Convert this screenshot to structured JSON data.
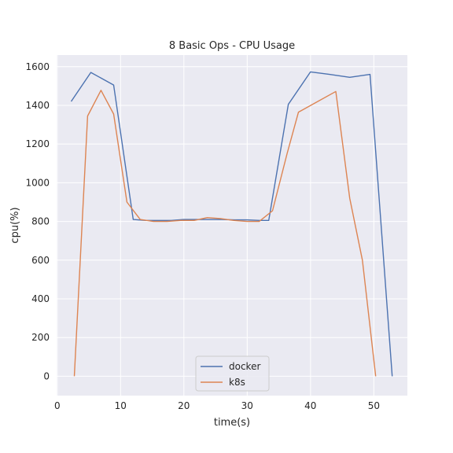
{
  "chart_data": {
    "type": "line",
    "title": "8 Basic Ops - CPU Usage",
    "xlabel": "time(s)",
    "ylabel": "cpu(%)",
    "xlim": [
      -0.1,
      55.3
    ],
    "ylim": [
      -100,
      1660
    ],
    "xticks": [
      0,
      10,
      20,
      30,
      40,
      50
    ],
    "yticks": [
      0,
      200,
      400,
      600,
      800,
      1000,
      1200,
      1400,
      1600
    ],
    "grid": true,
    "legend_position": "bottom-center",
    "background": "#eaeaf2",
    "series": [
      {
        "name": "docker",
        "color": "#4c72b0",
        "x": [
          2.2,
          5.3,
          8.9,
          12.0,
          14.0,
          16.0,
          18.0,
          20.0,
          22.0,
          24.0,
          26.0,
          28.0,
          30.0,
          32.0,
          33.4,
          36.5,
          40.0,
          43.0,
          46.2,
          49.4,
          52.9
        ],
        "y": [
          1420,
          1570,
          1505,
          810,
          805,
          805,
          805,
          810,
          810,
          810,
          810,
          808,
          808,
          805,
          805,
          1405,
          1573,
          1560,
          1545,
          1560,
          0
        ]
      },
      {
        "name": "k8s",
        "color": "#dd8452",
        "x": [
          2.7,
          4.8,
          6.9,
          8.9,
          11.0,
          13.1,
          15.2,
          17.3,
          19.5,
          21.6,
          23.7,
          25.8,
          27.9,
          30.0,
          31.9,
          34.0,
          36.3,
          38.1,
          44.0,
          46.2,
          48.2,
          50.3
        ],
        "y": [
          0,
          1345,
          1478,
          1355,
          900,
          810,
          800,
          800,
          805,
          805,
          820,
          815,
          805,
          800,
          800,
          855,
          1150,
          1365,
          1472,
          920,
          600,
          0
        ]
      }
    ]
  }
}
